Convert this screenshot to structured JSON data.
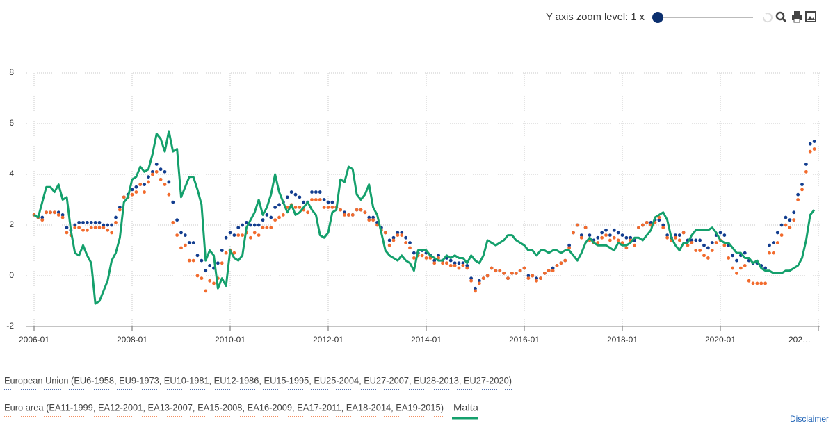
{
  "toolbar": {
    "zoom_label": "Y axis zoom level: 1 x",
    "disclaimer": "Disclaimer"
  },
  "chart_data": {
    "type": "line",
    "categories": [
      "2006-01",
      "2006-02",
      "2006-03",
      "2006-04",
      "2006-05",
      "2006-06",
      "2006-07",
      "2006-08",
      "2006-09",
      "2006-10",
      "2006-11",
      "2006-12",
      "2007-01",
      "2007-02",
      "2007-03",
      "2007-04",
      "2007-05",
      "2007-06",
      "2007-07",
      "2007-08",
      "2007-09",
      "2007-10",
      "2007-11",
      "2007-12",
      "2008-01",
      "2008-02",
      "2008-03",
      "2008-04",
      "2008-05",
      "2008-06",
      "2008-07",
      "2008-08",
      "2008-09",
      "2008-10",
      "2008-11",
      "2008-12",
      "2009-01",
      "2009-02",
      "2009-03",
      "2009-04",
      "2009-05",
      "2009-06",
      "2009-07",
      "2009-08",
      "2009-09",
      "2009-10",
      "2009-11",
      "2009-12",
      "2010-01",
      "2010-02",
      "2010-03",
      "2010-04",
      "2010-05",
      "2010-06",
      "2010-07",
      "2010-08",
      "2010-09",
      "2010-10",
      "2010-11",
      "2010-12",
      "2011-01",
      "2011-02",
      "2011-03",
      "2011-04",
      "2011-05",
      "2011-06",
      "2011-07",
      "2011-08",
      "2011-09",
      "2011-10",
      "2011-11",
      "2011-12",
      "2012-01",
      "2012-02",
      "2012-03",
      "2012-04",
      "2012-05",
      "2012-06",
      "2012-07",
      "2012-08",
      "2012-09",
      "2012-10",
      "2012-11",
      "2012-12",
      "2013-01",
      "2013-02",
      "2013-03",
      "2013-04",
      "2013-05",
      "2013-06",
      "2013-07",
      "2013-08",
      "2013-09",
      "2013-10",
      "2013-11",
      "2013-12",
      "2014-01",
      "2014-02",
      "2014-03",
      "2014-04",
      "2014-05",
      "2014-06",
      "2014-07",
      "2014-08",
      "2014-09",
      "2014-10",
      "2014-11",
      "2014-12",
      "2015-01",
      "2015-02",
      "2015-03",
      "2015-04",
      "2015-05",
      "2015-06",
      "2015-07",
      "2015-08",
      "2015-09",
      "2015-10",
      "2015-11",
      "2015-12",
      "2016-01",
      "2016-02",
      "2016-03",
      "2016-04",
      "2016-05",
      "2016-06",
      "2016-07",
      "2016-08",
      "2016-09",
      "2016-10",
      "2016-11",
      "2016-12",
      "2017-01",
      "2017-02",
      "2017-03",
      "2017-04",
      "2017-05",
      "2017-06",
      "2017-07",
      "2017-08",
      "2017-09",
      "2017-10",
      "2017-11",
      "2017-12",
      "2018-01",
      "2018-02",
      "2018-03",
      "2018-04",
      "2018-05",
      "2018-06",
      "2018-07",
      "2018-08",
      "2018-09",
      "2018-10",
      "2018-11",
      "2018-12",
      "2019-01",
      "2019-02",
      "2019-03",
      "2019-04",
      "2019-05",
      "2019-06",
      "2019-07",
      "2019-08",
      "2019-09",
      "2019-10",
      "2019-11",
      "2019-12",
      "2020-01",
      "2020-02",
      "2020-03",
      "2020-04",
      "2020-05",
      "2020-06",
      "2020-07",
      "2020-08",
      "2020-09",
      "2020-10",
      "2020-11",
      "2020-12",
      "2021-01",
      "2021-02",
      "2021-03",
      "2021-04",
      "2021-05",
      "2021-06",
      "2021-07",
      "2021-08",
      "2021-09",
      "2021-10",
      "2021-11",
      "2021-12"
    ],
    "series": [
      {
        "name": "European Union (EU6-1958, EU9-1973, EU10-1981, EU12-1986, EU15-1995, EU25-2004, EU27-2007, EU28-2013, EU27-2020)",
        "color": "#123d8f",
        "style": "dots",
        "values": [
          2.4,
          2.3,
          2.3,
          2.5,
          2.5,
          2.5,
          2.5,
          2.4,
          1.9,
          1.8,
          2.0,
          2.1,
          2.1,
          2.1,
          2.1,
          2.1,
          2.1,
          2.0,
          2.0,
          2.0,
          2.3,
          2.7,
          3.1,
          3.2,
          3.4,
          3.5,
          3.6,
          3.6,
          3.9,
          4.1,
          4.4,
          4.2,
          4.1,
          3.7,
          2.9,
          2.2,
          1.7,
          1.6,
          1.3,
          1.3,
          0.8,
          0.6,
          0.2,
          0.4,
          0.3,
          0.5,
          1.0,
          1.5,
          1.7,
          1.6,
          1.9,
          2.0,
          2.1,
          2.0,
          2.0,
          2.0,
          2.2,
          2.4,
          2.3,
          2.7,
          2.8,
          2.9,
          3.1,
          3.3,
          3.2,
          3.1,
          2.9,
          2.9,
          3.3,
          3.3,
          3.3,
          3.0,
          2.9,
          2.9,
          2.7,
          2.6,
          2.5,
          2.4,
          2.4,
          2.6,
          2.6,
          2.5,
          2.3,
          2.3,
          2.1,
          1.9,
          1.7,
          1.4,
          1.5,
          1.7,
          1.7,
          1.5,
          1.3,
          0.9,
          0.9,
          1.0,
          0.9,
          0.8,
          0.6,
          0.8,
          0.6,
          0.7,
          0.6,
          0.5,
          0.5,
          0.5,
          0.4,
          -0.1,
          -0.5,
          -0.2,
          -0.1,
          0.0,
          0.3,
          0.2,
          0.2,
          0.1,
          -0.1,
          0.1,
          0.1,
          0.2,
          0.3,
          0.0,
          0.0,
          -0.1,
          -0.1,
          0.1,
          0.2,
          0.3,
          0.4,
          0.5,
          0.6,
          1.2,
          1.7,
          2.0,
          1.6,
          1.9,
          1.6,
          1.4,
          1.5,
          1.7,
          1.8,
          1.6,
          1.8,
          1.7,
          1.6,
          1.5,
          1.5,
          1.4,
          1.9,
          2.0,
          2.1,
          2.1,
          2.2,
          2.2,
          2.0,
          1.6,
          1.5,
          1.6,
          1.6,
          1.7,
          1.4,
          1.4,
          1.4,
          1.4,
          1.2,
          1.1,
          1.3,
          1.6,
          1.7,
          1.6,
          1.2,
          0.8,
          0.6,
          0.8,
          0.9,
          0.6,
          0.5,
          0.5,
          0.4,
          0.3,
          1.2,
          1.3,
          1.7,
          2.0,
          2.3,
          2.2,
          2.5,
          3.2,
          3.6,
          4.4,
          5.2,
          5.3
        ]
      },
      {
        "name": "Euro area (EA11-1999, EA12-2001, EA13-2007, EA15-2008, EA16-2009, EA17-2011, EA18-2014, EA19-2015)",
        "color": "#f26b2d",
        "style": "dots",
        "values": [
          2.4,
          2.3,
          2.2,
          2.5,
          2.5,
          2.5,
          2.4,
          2.3,
          1.7,
          1.6,
          1.9,
          1.9,
          1.8,
          1.8,
          1.9,
          1.9,
          1.9,
          1.9,
          1.8,
          1.7,
          2.1,
          2.6,
          3.1,
          3.1,
          3.2,
          3.3,
          3.6,
          3.3,
          3.7,
          4.0,
          4.1,
          3.8,
          3.6,
          3.2,
          2.1,
          1.6,
          1.1,
          1.2,
          0.6,
          0.6,
          0.0,
          -0.1,
          -0.6,
          -0.2,
          -0.3,
          -0.1,
          0.5,
          0.9,
          1.0,
          0.9,
          1.6,
          1.6,
          1.7,
          1.5,
          1.7,
          1.6,
          1.9,
          1.9,
          1.9,
          2.2,
          2.3,
          2.4,
          2.7,
          2.8,
          2.7,
          2.7,
          2.6,
          2.5,
          3.0,
          3.0,
          3.0,
          2.7,
          2.7,
          2.7,
          2.7,
          2.6,
          2.4,
          2.4,
          2.4,
          2.6,
          2.6,
          2.5,
          2.2,
          2.2,
          2.0,
          1.8,
          1.7,
          1.2,
          1.4,
          1.6,
          1.6,
          1.3,
          1.1,
          0.7,
          0.8,
          0.8,
          0.7,
          0.7,
          0.5,
          0.7,
          0.5,
          0.5,
          0.4,
          0.4,
          0.3,
          0.4,
          0.3,
          -0.2,
          -0.6,
          -0.3,
          -0.1,
          0.0,
          0.3,
          0.2,
          0.2,
          0.1,
          -0.1,
          0.1,
          0.1,
          0.2,
          0.3,
          -0.1,
          0.0,
          -0.2,
          -0.1,
          0.1,
          0.2,
          0.2,
          0.4,
          0.5,
          0.6,
          1.1,
          1.7,
          2.0,
          1.5,
          1.9,
          1.4,
          1.3,
          1.3,
          1.5,
          1.6,
          1.4,
          1.5,
          1.4,
          1.3,
          1.1,
          1.4,
          1.2,
          1.9,
          2.0,
          2.1,
          2.0,
          2.1,
          2.3,
          1.9,
          1.5,
          1.4,
          1.5,
          1.4,
          1.7,
          1.2,
          1.3,
          1.0,
          1.0,
          0.8,
          0.7,
          1.0,
          1.3,
          1.4,
          1.2,
          0.7,
          0.3,
          0.1,
          0.3,
          0.4,
          -0.2,
          -0.3,
          -0.3,
          -0.3,
          -0.3,
          0.9,
          0.9,
          1.3,
          1.6,
          2.0,
          1.9,
          2.2,
          3.0,
          3.4,
          4.1,
          4.9,
          5.0
        ]
      },
      {
        "name": "Malta",
        "color": "#14a06c",
        "style": "line",
        "values": [
          2.4,
          2.3,
          2.9,
          3.5,
          3.5,
          3.3,
          3.6,
          3.0,
          3.1,
          1.8,
          0.9,
          0.8,
          1.2,
          0.8,
          0.5,
          -1.1,
          -1.0,
          -0.6,
          -0.2,
          0.6,
          0.9,
          1.5,
          2.9,
          3.1,
          3.8,
          3.9,
          4.3,
          4.1,
          4.2,
          4.8,
          5.6,
          5.4,
          4.9,
          5.7,
          4.9,
          5.0,
          3.1,
          3.5,
          3.9,
          3.9,
          3.4,
          2.8,
          0.6,
          1.0,
          0.8,
          -0.5,
          -0.1,
          -0.4,
          1.0,
          0.7,
          0.6,
          0.8,
          1.9,
          2.2,
          2.5,
          3.0,
          2.4,
          2.7,
          3.2,
          4.0,
          3.3,
          2.9,
          2.5,
          2.8,
          2.4,
          2.5,
          2.7,
          2.9,
          2.6,
          2.4,
          1.6,
          1.5,
          1.7,
          2.5,
          2.6,
          3.8,
          3.7,
          4.3,
          4.2,
          3.2,
          3.0,
          3.2,
          3.6,
          2.7,
          2.4,
          1.7,
          1.0,
          0.8,
          0.7,
          0.6,
          0.8,
          0.6,
          0.5,
          0.2,
          1.0,
          1.0,
          1.0,
          0.8,
          0.7,
          0.6,
          0.6,
          0.8,
          0.7,
          0.8,
          0.7,
          0.7,
          0.5,
          0.8,
          0.6,
          0.5,
          0.8,
          1.4,
          1.3,
          1.2,
          1.3,
          1.4,
          1.6,
          1.6,
          1.4,
          1.3,
          1.2,
          1.0,
          1.0,
          0.8,
          1.0,
          1.0,
          0.9,
          1.0,
          1.0,
          0.9,
          1.0,
          1.0,
          0.8,
          0.6,
          0.9,
          1.3,
          1.5,
          1.3,
          1.2,
          1.2,
          1.2,
          1.1,
          1.0,
          1.3,
          1.2,
          1.2,
          1.3,
          1.5,
          1.5,
          1.4,
          1.6,
          1.8,
          2.3,
          2.4,
          2.5,
          2.2,
          1.5,
          1.2,
          1.0,
          1.3,
          1.3,
          1.6,
          1.8,
          1.8,
          1.8,
          1.8,
          1.9,
          1.7,
          1.4,
          1.3,
          1.3,
          1.1,
          0.9,
          0.9,
          0.7,
          0.7,
          0.5,
          0.6,
          0.3,
          0.2,
          0.2,
          0.1,
          0.1,
          0.1,
          0.2,
          0.2,
          0.3,
          0.4,
          0.7,
          1.4,
          2.4,
          2.6
        ]
      }
    ],
    "ylim": [
      -2,
      8
    ],
    "yticks": [
      -2,
      0,
      2,
      4,
      6,
      8
    ],
    "xticks": [
      "2006-01",
      "2008-01",
      "2010-01",
      "2012-01",
      "2014-01",
      "2016-01",
      "2018-01",
      "2020-01",
      {
        "value": "2022-01",
        "label": "202…"
      }
    ],
    "grid": true
  }
}
